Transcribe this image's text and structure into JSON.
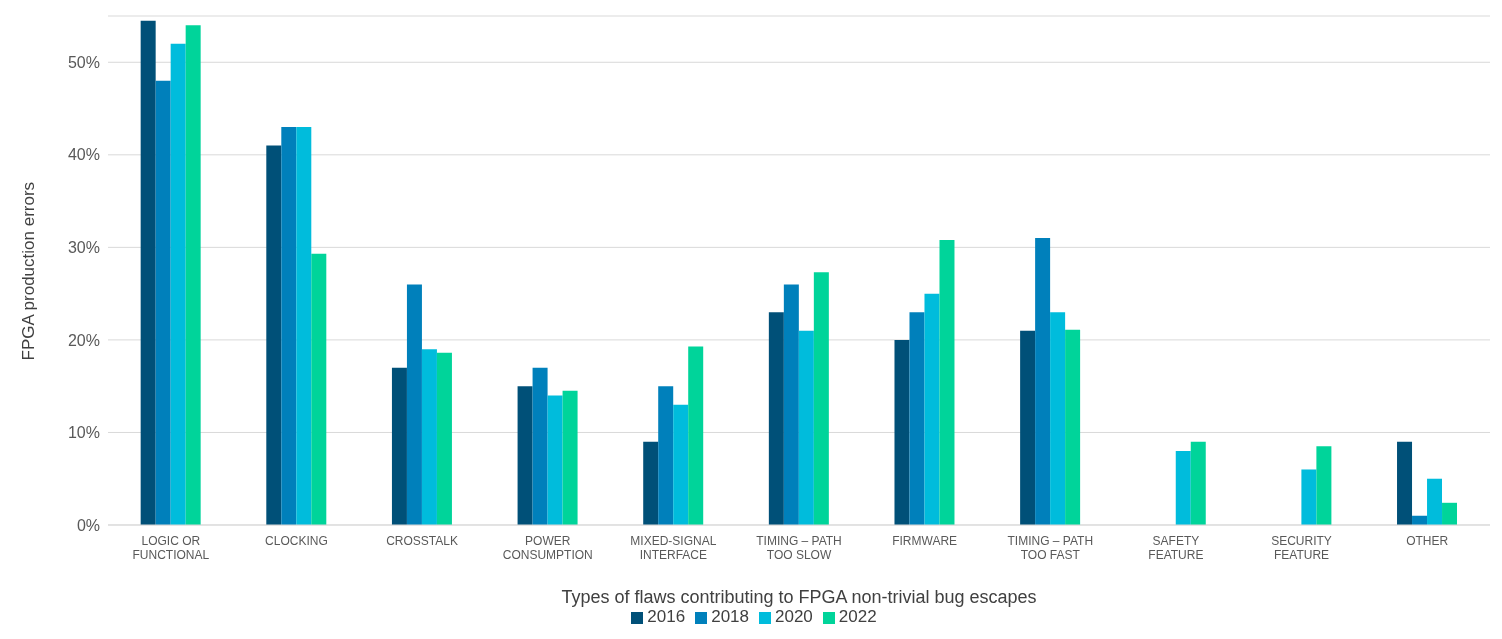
{
  "chart_data": {
    "type": "bar",
    "xlabel": "Types of flaws contributing to FPGA non-trivial bug escapes",
    "ylabel": "FPGA production errors",
    "categories": [
      "LOGIC OR FUNCTIONAL",
      "CLOCKING",
      "CROSSTALK",
      "POWER CONSUMPTION",
      "MIXED-SIGNAL INTERFACE",
      "TIMING – PATH TOO SLOW",
      "FIRMWARE",
      "TIMING – PATH TOO FAST",
      "SAFETY FEATURE",
      "SECURITY FEATURE",
      "OTHER"
    ],
    "series": [
      {
        "name": "2016",
        "color": "#005078",
        "values": [
          54.5,
          41,
          17,
          15,
          9,
          23,
          20,
          21,
          null,
          null,
          9
        ]
      },
      {
        "name": "2018",
        "color": "#0080bb",
        "values": [
          48,
          43,
          26,
          17,
          15,
          26,
          23,
          31,
          null,
          null,
          1
        ]
      },
      {
        "name": "2020",
        "color": "#00bcdc",
        "values": [
          52,
          43,
          19,
          14,
          13,
          21,
          25,
          23,
          8,
          6,
          5
        ]
      },
      {
        "name": "2022",
        "color": "#00d49a",
        "values": [
          54,
          29.3,
          18.6,
          14.5,
          19.3,
          27.3,
          30.8,
          21.1,
          9,
          8.5,
          2.4
        ]
      }
    ],
    "ylim": [
      0,
      55
    ],
    "yticks": [
      {
        "value": 0,
        "label": "0%"
      },
      {
        "value": 10,
        "label": "10%"
      },
      {
        "value": 20,
        "label": "20%"
      },
      {
        "value": 30,
        "label": "30%"
      },
      {
        "value": 40,
        "label": "40%"
      },
      {
        "value": 50,
        "label": "50%"
      }
    ],
    "grid": "y",
    "legend": "bottom"
  }
}
